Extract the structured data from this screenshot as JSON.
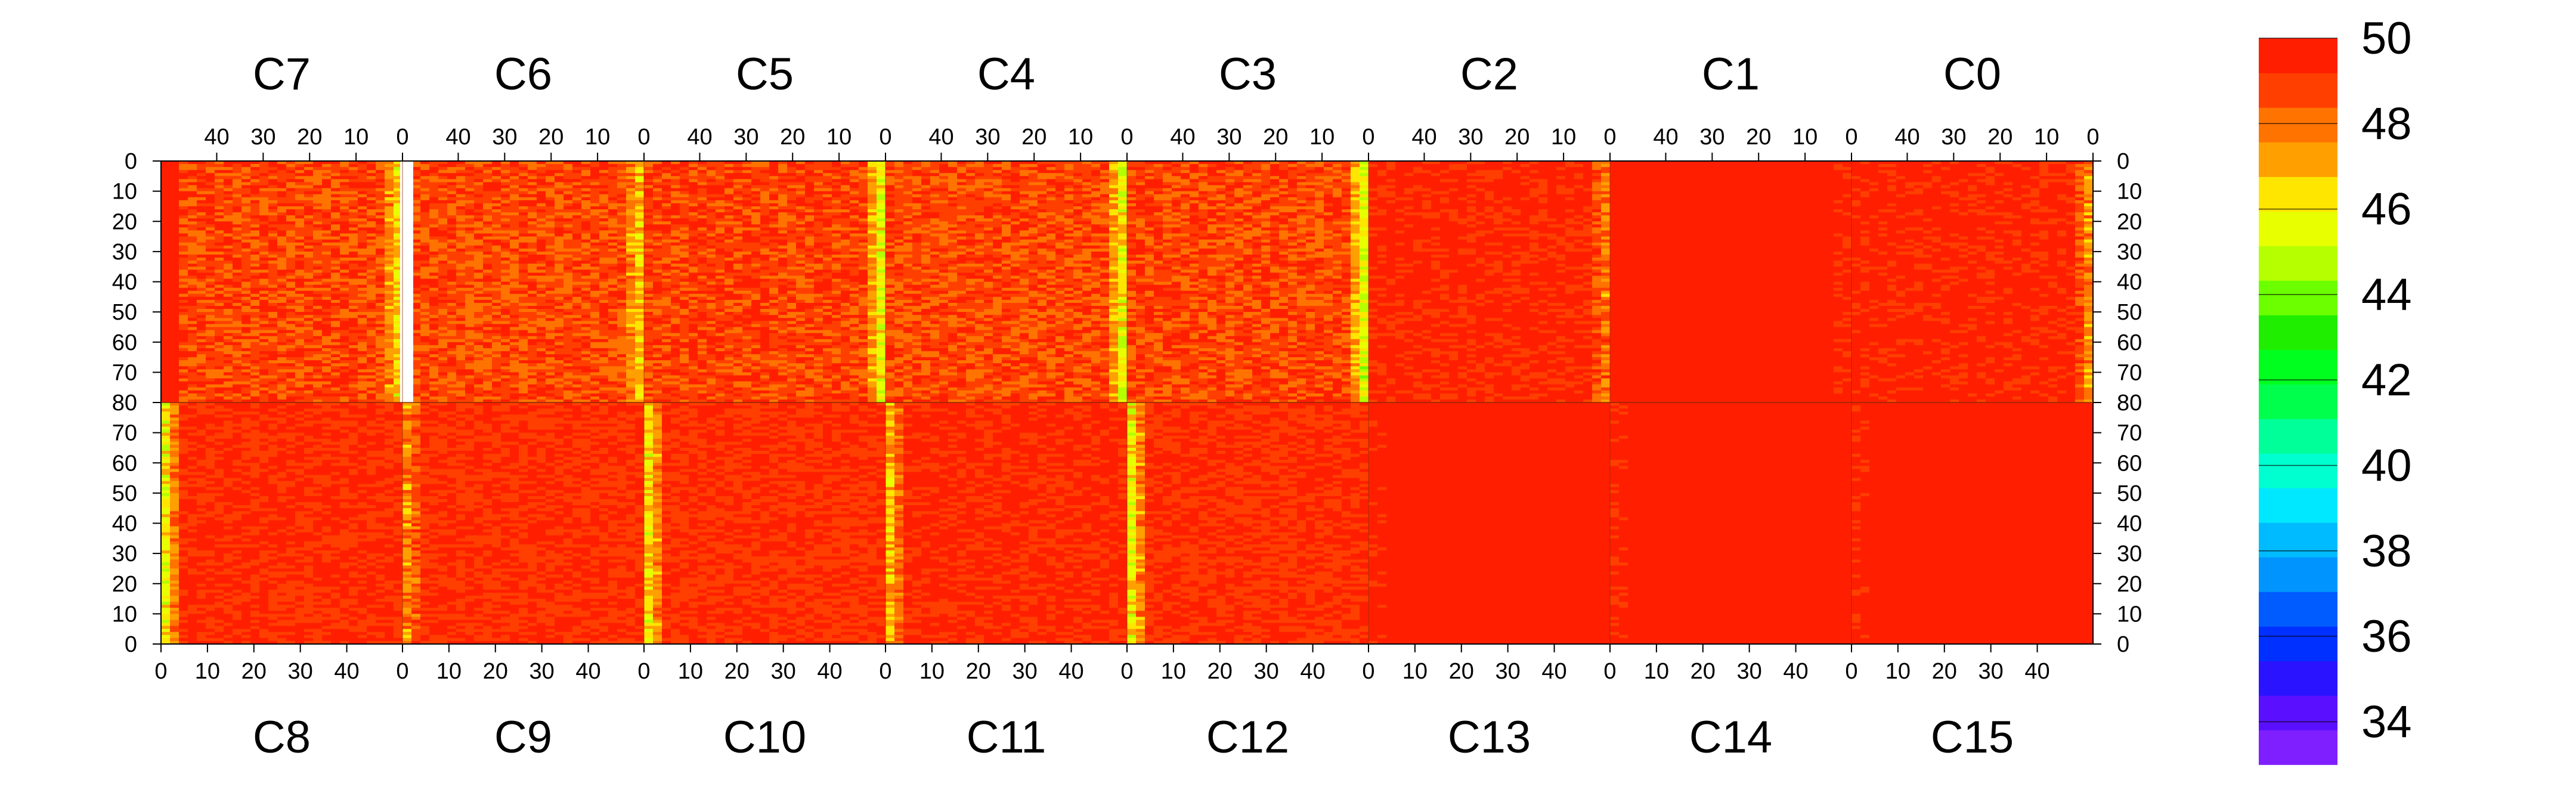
{
  "chart_data": {
    "type": "heatmap",
    "title": "",
    "xlabel": "",
    "ylabel": "",
    "z_range": [
      33,
      50
    ],
    "colorbar": {
      "ticks": [
        34,
        36,
        38,
        40,
        42,
        44,
        46,
        48,
        50
      ],
      "tick_labels": [
        "34",
        "36",
        "38",
        "40",
        "42",
        "44",
        "46",
        "48",
        "50"
      ],
      "bands": [
        "#7f1fff",
        "#5a10ff",
        "#2a14ff",
        "#0030ff",
        "#005cff",
        "#0094ff",
        "#00bbff",
        "#00e8ff",
        "#00ffd0",
        "#00ff99",
        "#00ff4c",
        "#00ff1f",
        "#1fee00",
        "#6cff00",
        "#b5ff00",
        "#e8ff00",
        "#ffe600",
        "#ffa000",
        "#ff7300",
        "#ff3f00",
        "#ff1f00"
      ]
    },
    "top_row": {
      "chips": [
        "C7",
        "C6",
        "C5",
        "C4",
        "C3",
        "C2",
        "C1",
        "C0"
      ],
      "x_tick_labels": [
        "40",
        "30",
        "20",
        "10",
        "0"
      ],
      "x_tick_values": [
        40,
        30,
        20,
        10,
        0
      ],
      "x_range": [
        52,
        0
      ],
      "y_tick_labels": [
        "0",
        "10",
        "20",
        "30",
        "40",
        "50",
        "60",
        "70",
        "80"
      ],
      "y_tick_values": [
        0,
        10,
        20,
        30,
        40,
        50,
        60,
        70,
        80
      ],
      "y_range": [
        0,
        80
      ]
    },
    "bottom_row": {
      "chips": [
        "C8",
        "C9",
        "C10",
        "C11",
        "C12",
        "C13",
        "C14",
        "C15"
      ],
      "x_tick_labels": [
        "0",
        "10",
        "20",
        "30",
        "40"
      ],
      "x_tick_values": [
        0,
        10,
        20,
        30,
        40
      ],
      "x_range": [
        0,
        52
      ],
      "y_tick_labels": [
        "80",
        "70",
        "60",
        "50",
        "40",
        "30",
        "20",
        "10",
        "0"
      ],
      "y_tick_values": [
        80,
        70,
        60,
        50,
        40,
        30,
        20,
        10,
        0
      ],
      "y_range": [
        80,
        0
      ]
    },
    "chip_profiles": {
      "C7": {
        "mean": 48.8,
        "spread": 1.1,
        "edge_low": 46.2
      },
      "C6": {
        "mean": 48.7,
        "spread": 1.0,
        "edge_low": 46.5
      },
      "C5": {
        "mean": 48.9,
        "spread": 1.0,
        "edge_low": 45.8
      },
      "C4": {
        "mean": 48.7,
        "spread": 1.0,
        "edge_low": 46.0
      },
      "C3": {
        "mean": 48.8,
        "spread": 1.1,
        "edge_low": 45.5
      },
      "C2": {
        "mean": 49.5,
        "spread": 0.8,
        "edge_low": 48.0
      },
      "C1": {
        "mean": 49.8,
        "spread": 0.3,
        "edge_low": 49.8
      },
      "C0": {
        "mean": 49.5,
        "spread": 0.6,
        "edge_low": 47.6
      },
      "C8": {
        "mean": 49.3,
        "spread": 0.7,
        "edge_low": 46.0
      },
      "C9": {
        "mean": 49.2,
        "spread": 0.7,
        "edge_low": 47.6
      },
      "C10": {
        "mean": 49.2,
        "spread": 0.7,
        "edge_low": 46.2
      },
      "C11": {
        "mean": 49.4,
        "spread": 0.6,
        "edge_low": 47.0
      },
      "C12": {
        "mean": 49.2,
        "spread": 0.8,
        "edge_low": 46.0
      },
      "C13": {
        "mean": 49.9,
        "spread": 0.15,
        "edge_low": 49.9
      },
      "C14": {
        "mean": 49.9,
        "spread": 0.15,
        "edge_low": 49.9
      },
      "C15": {
        "mean": 49.9,
        "spread": 0.2,
        "edge_low": 49.9
      }
    }
  }
}
